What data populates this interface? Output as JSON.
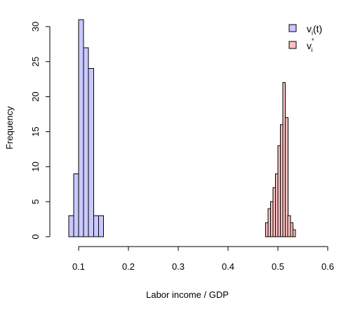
{
  "chart_data": {
    "type": "histogram",
    "xlabel": "Labor income / GDP",
    "ylabel": "Frequency",
    "xlim": [
      0.05,
      0.6
    ],
    "ylim": [
      0,
      31
    ],
    "x_ticks": [
      "0.1",
      "0.2",
      "0.3",
      "0.4",
      "0.5",
      "0.6"
    ],
    "y_ticks": [
      "0",
      "5",
      "10",
      "15",
      "20",
      "25",
      "30"
    ],
    "series": [
      {
        "name_main": "v",
        "name_sub": "i",
        "name_suffix": "(t)",
        "color": "#c8c8ff",
        "bin_width": 0.01,
        "bins": [
          {
            "x0": 0.08,
            "x1": 0.09,
            "count": 3
          },
          {
            "x0": 0.09,
            "x1": 0.1,
            "count": 9
          },
          {
            "x0": 0.1,
            "x1": 0.11,
            "count": 31
          },
          {
            "x0": 0.11,
            "x1": 0.12,
            "count": 27
          },
          {
            "x0": 0.12,
            "x1": 0.13,
            "count": 24
          },
          {
            "x0": 0.13,
            "x1": 0.14,
            "count": 3
          },
          {
            "x0": 0.14,
            "x1": 0.15,
            "count": 3
          }
        ]
      },
      {
        "name_main": "v",
        "name_sub": "i",
        "name_sup": "*",
        "color": "#ffc0c0",
        "bin_width": 0.005,
        "bins": [
          {
            "x0": 0.475,
            "x1": 0.48,
            "count": 2
          },
          {
            "x0": 0.48,
            "x1": 0.485,
            "count": 4
          },
          {
            "x0": 0.485,
            "x1": 0.49,
            "count": 5
          },
          {
            "x0": 0.49,
            "x1": 0.495,
            "count": 7
          },
          {
            "x0": 0.495,
            "x1": 0.5,
            "count": 9
          },
          {
            "x0": 0.5,
            "x1": 0.505,
            "count": 13
          },
          {
            "x0": 0.505,
            "x1": 0.51,
            "count": 16
          },
          {
            "x0": 0.51,
            "x1": 0.515,
            "count": 22
          },
          {
            "x0": 0.515,
            "x1": 0.52,
            "count": 17
          },
          {
            "x0": 0.52,
            "x1": 0.525,
            "count": 3
          },
          {
            "x0": 0.525,
            "x1": 0.53,
            "count": 2
          },
          {
            "x0": 0.53,
            "x1": 0.535,
            "count": 1
          }
        ]
      }
    ],
    "legend_position": "top-right",
    "grid": false
  }
}
